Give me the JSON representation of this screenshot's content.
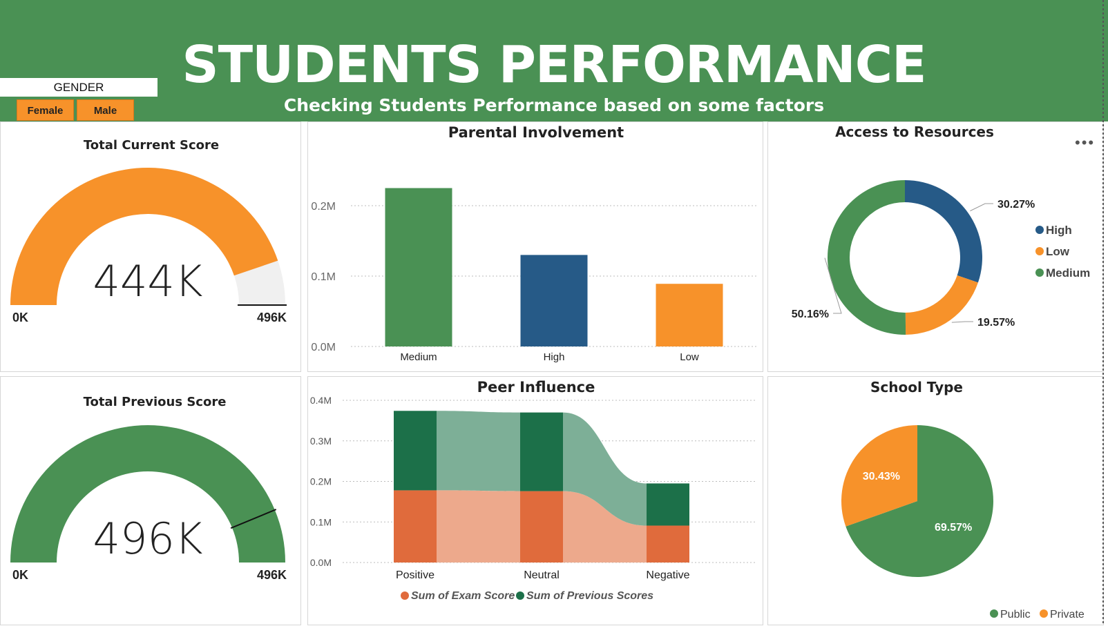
{
  "header": {
    "title": "STUDENTS PERFORMANCE",
    "subtitle": "Checking Students Performance based on some factors"
  },
  "slicer": {
    "title": "GENDER",
    "options": [
      "Female",
      "Male"
    ]
  },
  "colors": {
    "green": "#4a9154",
    "orange": "#f7922a",
    "blue": "#265a87",
    "dark_green": "#1c7049",
    "light_green": "#7daf97",
    "salmon": "#e06b3c",
    "light_salmon": "#eda98c",
    "gauge_track": "#f0f0f0"
  },
  "chart_data": [
    {
      "type": "gauge",
      "title": "Total Current Score",
      "value_label": "444K",
      "value": 444,
      "min": 0,
      "max": 496,
      "target": 496,
      "min_label": "0K",
      "max_label": "496K"
    },
    {
      "type": "gauge",
      "title": "Total Previous Score",
      "value_label": "496K",
      "value": 496,
      "min": 0,
      "max": 496,
      "target": 434,
      "min_label": "0K",
      "max_label": "496K"
    },
    {
      "type": "bar",
      "title": "Parental Involvement",
      "categories": [
        "Medium",
        "High",
        "Low"
      ],
      "values": [
        0.225,
        0.13,
        0.089
      ],
      "value_colors": [
        "#4a9154",
        "#265a87",
        "#f7922a"
      ],
      "ylim": [
        0,
        0.25
      ],
      "yticks": [
        0,
        0.1,
        0.2
      ],
      "ytick_labels": [
        "0.0M",
        "0.1M",
        "0.2M"
      ]
    },
    {
      "type": "donut",
      "title": "Access to Resources",
      "slices": [
        {
          "name": "High",
          "value": 30.27,
          "label": "30.27%",
          "color": "#265a87"
        },
        {
          "name": "Low",
          "value": 19.57,
          "label": "19.57%",
          "color": "#f7922a"
        },
        {
          "name": "Medium",
          "value": 50.16,
          "label": "50.16%",
          "color": "#4a9154"
        }
      ],
      "legend": [
        "High",
        "Low",
        "Medium"
      ],
      "legend_position": "right"
    },
    {
      "type": "ribbon",
      "title": "Peer Influence",
      "categories": [
        "Positive",
        "Neutral",
        "Negative"
      ],
      "series": [
        {
          "name": "Sum of Exam Score",
          "values": [
            0.178,
            0.176,
            0.091
          ],
          "color": "#e06b3c"
        },
        {
          "name": "Sum of Previous Scores",
          "values": [
            0.196,
            0.194,
            0.104
          ],
          "color": "#1c7049"
        }
      ],
      "ylim": [
        0,
        0.4
      ],
      "yticks": [
        0,
        0.1,
        0.2,
        0.3,
        0.4
      ],
      "ytick_labels": [
        "0.0M",
        "0.1M",
        "0.2M",
        "0.3M",
        "0.4M"
      ],
      "legend_position": "bottom"
    },
    {
      "type": "pie",
      "title": "School Type",
      "slices": [
        {
          "name": "Public",
          "value": 69.57,
          "label": "69.57%",
          "color": "#4a9154"
        },
        {
          "name": "Private",
          "value": 30.43,
          "label": "30.43%",
          "color": "#f7922a"
        }
      ],
      "legend": [
        "Public",
        "Private"
      ],
      "legend_position": "bottom-right"
    }
  ]
}
